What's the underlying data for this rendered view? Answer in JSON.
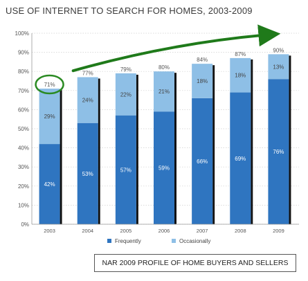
{
  "colors": {
    "frequently": "#2f75c0",
    "occasionally": "#8ebfe6",
    "bar_shadow": "#111111",
    "arrow": "#1f7a1a",
    "highlight_circle": "#2a8a22",
    "axis_text": "#555555",
    "grid": "#cfcfcf"
  },
  "source_note": "NAR 2009 PROFILE OF HOME BUYERS AND SELLERS",
  "chart_data": {
    "type": "bar",
    "stacked": true,
    "title": "USE OF INTERNET TO SEARCH FOR HOMES, 2003-2009",
    "categories": [
      "2003",
      "2004",
      "2005",
      "2006",
      "2007",
      "2008",
      "2009"
    ],
    "series": [
      {
        "name": "Frequently",
        "values": [
          42,
          53,
          57,
          59,
          66,
          69,
          76
        ],
        "labels": [
          "42%",
          "53%",
          "57%",
          "59%",
          "66%",
          "69%",
          "76%"
        ]
      },
      {
        "name": "Occasionally",
        "values": [
          29,
          24,
          22,
          21,
          18,
          18,
          13
        ],
        "labels": [
          "29%",
          "24%",
          "22%",
          "21%",
          "18%",
          "18%",
          "13%"
        ]
      }
    ],
    "totals": [
      "71%",
      "77%",
      "79%",
      "80%",
      "84%",
      "87%",
      "90%"
    ],
    "ylim": [
      0,
      100
    ],
    "yticks": [
      "0%",
      "10%",
      "20%",
      "30%",
      "40%",
      "50%",
      "60%",
      "70%",
      "80%",
      "90%",
      "100%"
    ],
    "grid": true,
    "legend_position": "bottom",
    "annotations": {
      "highlighted_category": "2003",
      "trend_arrow": {
        "from_value": 80,
        "to_value": 100
      }
    }
  }
}
